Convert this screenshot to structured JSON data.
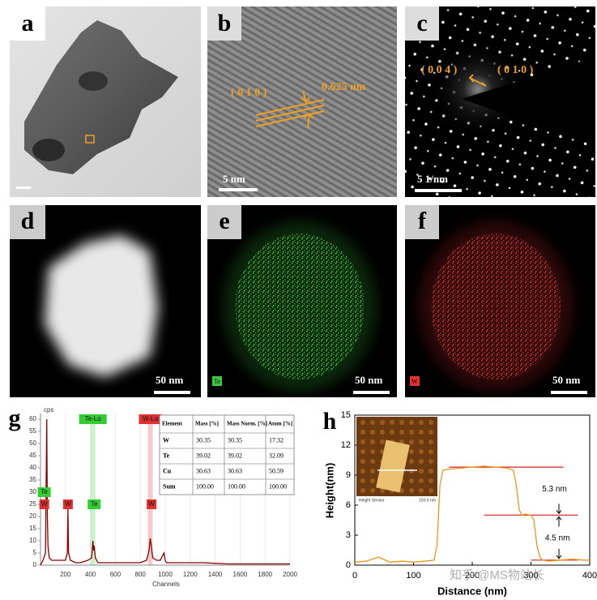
{
  "panels": [
    {
      "letter": "a"
    },
    {
      "letter": "b",
      "labels": [
        "( 0 1 0 )",
        "0.625 nm"
      ],
      "scale_bar": "5 nm"
    },
    {
      "letter": "c",
      "labels": [
        "( 0 0 4 )",
        "( 0 1 0 )"
      ],
      "scale_bar": "5 1/nm"
    },
    {
      "letter": "d",
      "scale_bar": "50 nm"
    },
    {
      "letter": "e",
      "element": "Te",
      "scale_bar": "50 nm"
    },
    {
      "letter": "f",
      "element": "W",
      "scale_bar": "50 nm"
    }
  ],
  "chart_data": [
    {
      "type": "line",
      "letter": "g",
      "ylabel": "cps",
      "xlabel": "Channels",
      "xlim": [
        0,
        2000
      ],
      "xticks": [
        200,
        400,
        600,
        800,
        1000,
        1200,
        1400,
        1600,
        1800,
        2000
      ],
      "ylim": [
        0,
        60
      ],
      "yticks": [
        0,
        5,
        10,
        15,
        20,
        25,
        30,
        35,
        40,
        45,
        50,
        55,
        60
      ],
      "grid": true,
      "series": [
        {
          "color": "#8b0000",
          "x": [
            0,
            20,
            40,
            50,
            55,
            60,
            70,
            90,
            120,
            160,
            200,
            215,
            220,
            225,
            240,
            280,
            320,
            380,
            410,
            420,
            425,
            430,
            440,
            460,
            500,
            600,
            700,
            800,
            850,
            870,
            880,
            890,
            900,
            930,
            960,
            990,
            1000,
            1010,
            1050,
            1200,
            1300,
            1500,
            1700,
            2000
          ],
          "values": [
            0,
            2,
            5,
            60,
            20,
            8,
            3,
            2,
            2,
            2,
            2,
            5,
            23,
            5,
            2,
            1,
            1,
            2,
            3,
            10,
            6,
            8,
            3,
            1,
            1,
            1,
            1,
            1,
            2,
            6,
            11,
            7,
            3,
            2,
            2,
            5,
            2,
            1,
            1,
            1,
            1,
            0.5,
            0.5,
            0.5
          ]
        }
      ],
      "annotations": [
        {
          "text": "Te-Lα",
          "x": 420,
          "y": 60,
          "color": "#33cc33"
        },
        {
          "text": "W-Lα",
          "x": 880,
          "y": 60,
          "color": "#e03030"
        },
        {
          "text": "Te",
          "x": 30,
          "y": 30,
          "color": "#33cc33"
        },
        {
          "text": "W",
          "x": 30,
          "y": 25,
          "color": "#e03030"
        },
        {
          "text": "W",
          "x": 220,
          "y": 25,
          "color": "#e03030"
        },
        {
          "text": "Te",
          "x": 430,
          "y": 25,
          "color": "#33cc33"
        },
        {
          "text": "W",
          "x": 890,
          "y": 25,
          "color": "#e03030"
        }
      ],
      "table": {
        "header": [
          "Element",
          "Mass [%]",
          "Mass Norm. [%]",
          "Atom [%]"
        ],
        "rows": [
          [
            "W",
            "30.35",
            "30.35",
            "17.32"
          ],
          [
            "Te",
            "39.02",
            "39.02",
            "32.09"
          ],
          [
            "Cu",
            "30.63",
            "30.63",
            "50.59"
          ],
          [
            "Sum",
            "100.00",
            "100.00",
            "100.00"
          ]
        ]
      }
    },
    {
      "type": "line",
      "letter": "h",
      "xlabel": "Distance (nm)",
      "ylabel": "Height(nm)",
      "xlim": [
        0,
        400
      ],
      "xticks": [
        0,
        100,
        200,
        300,
        400
      ],
      "ylim": [
        0,
        15
      ],
      "yticks": [
        0,
        3,
        6,
        9,
        12,
        15
      ],
      "series": [
        {
          "color": "#e8961e",
          "x": [
            0,
            20,
            40,
            60,
            80,
            100,
            120,
            135,
            140,
            145,
            150,
            160,
            180,
            200,
            220,
            240,
            260,
            270,
            275,
            280,
            285,
            290,
            300,
            305,
            310,
            315,
            320,
            330,
            350,
            370,
            390,
            400
          ],
          "values": [
            0.3,
            0.4,
            0.8,
            0.3,
            0.4,
            0.3,
            0.4,
            0.5,
            2,
            8,
            9.5,
            9.6,
            9.7,
            9.8,
            9.9,
            9.8,
            9.7,
            9.5,
            8,
            5.5,
            5.0,
            5.1,
            5.0,
            4.5,
            2,
            0.8,
            0.5,
            0.4,
            0.5,
            0.6,
            0.5,
            0.5
          ]
        }
      ],
      "reference_lines": [
        {
          "y": 9.8,
          "x": [
            160,
            355
          ],
          "color": "#d02020"
        },
        {
          "y": 5.0,
          "x": [
            220,
            380
          ],
          "color": "#d02020"
        },
        {
          "y": 0.5,
          "x": [
            300,
            380
          ],
          "color": "#d02020"
        }
      ],
      "annotations": [
        {
          "text": "5.3 nm",
          "x": 340,
          "y": 7.6
        },
        {
          "text": "4.5 nm",
          "x": 345,
          "y": 2.7
        }
      ],
      "inset": {
        "labels": [
          "Height Sensor",
          "150.0 nm"
        ]
      },
      "watermark": "知乎 @MS物站长"
    }
  ]
}
